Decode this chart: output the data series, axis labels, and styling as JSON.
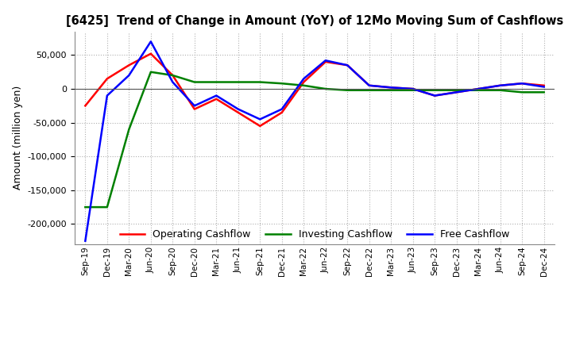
{
  "title": "[6425]  Trend of Change in Amount (YoY) of 12Mo Moving Sum of Cashflows",
  "ylabel": "Amount (million yen)",
  "background_color": "#ffffff",
  "grid_color": "#b0b0b0",
  "x_labels": [
    "Sep-19",
    "Dec-19",
    "Mar-20",
    "Jun-20",
    "Sep-20",
    "Dec-20",
    "Mar-21",
    "Jun-21",
    "Sep-21",
    "Dec-21",
    "Mar-22",
    "Jun-22",
    "Sep-22",
    "Dec-22",
    "Mar-23",
    "Jun-23",
    "Sep-23",
    "Dec-23",
    "Mar-24",
    "Jun-24",
    "Sep-24",
    "Dec-24"
  ],
  "operating_cashflow": [
    -25000,
    15000,
    35000,
    52000,
    20000,
    -30000,
    -15000,
    -35000,
    -55000,
    -35000,
    10000,
    40000,
    35000,
    5000,
    2000,
    0,
    -10000,
    -5000,
    0,
    5000,
    8000,
    5000
  ],
  "investing_cashflow": [
    -175000,
    -175000,
    -60000,
    25000,
    20000,
    10000,
    10000,
    10000,
    10000,
    8000,
    5000,
    0,
    -2000,
    -2000,
    -2000,
    -2000,
    -2000,
    -2000,
    -2000,
    -2000,
    -5000,
    -5000
  ],
  "free_cashflow": [
    -225000,
    -10000,
    20000,
    70000,
    10000,
    -25000,
    -10000,
    -30000,
    -45000,
    -30000,
    15000,
    42000,
    35000,
    5000,
    2000,
    0,
    -10000,
    -5000,
    0,
    5000,
    8000,
    3000
  ],
  "ylim": [
    -230000,
    85000
  ],
  "yticks": [
    50000,
    0,
    -50000,
    -100000,
    -150000,
    -200000
  ],
  "operating_color": "#ff0000",
  "investing_color": "#008000",
  "free_color": "#0000ff",
  "line_width": 1.8
}
